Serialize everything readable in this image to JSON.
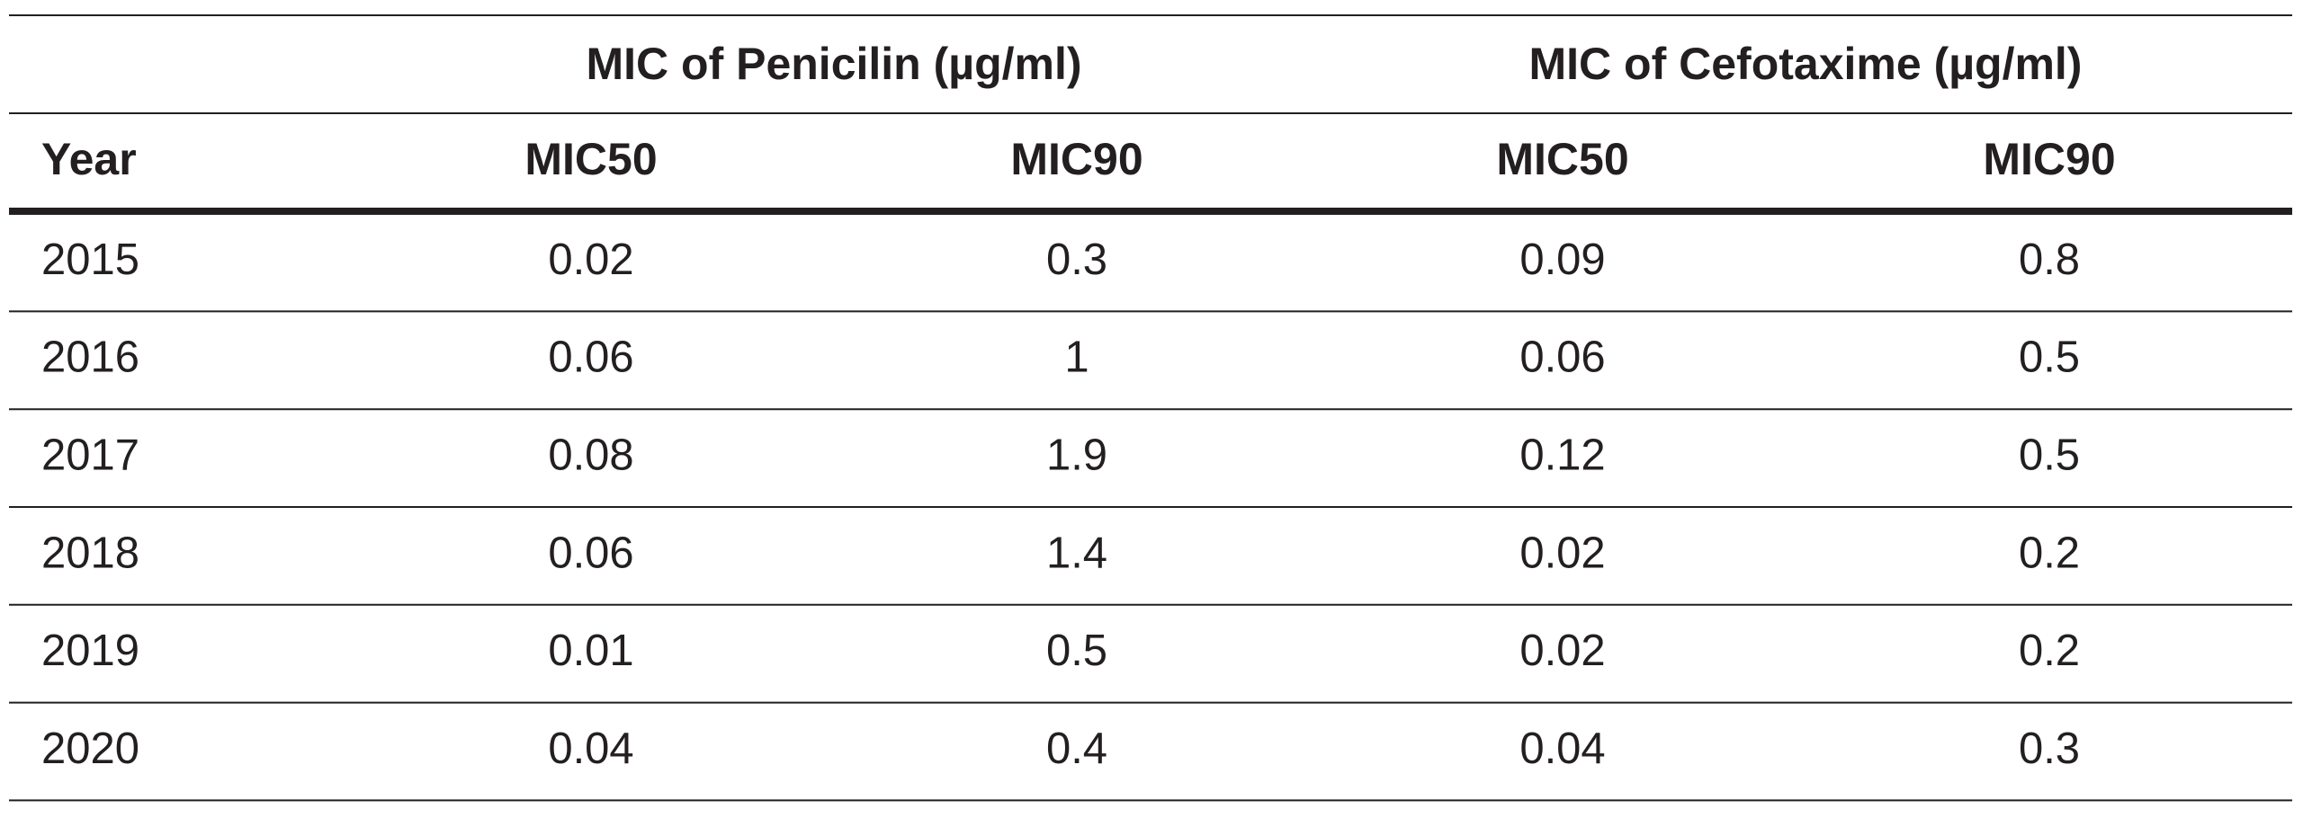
{
  "table": {
    "group_headers": [
      "MIC of Penicilin (µg/ml)",
      "MIC of Cefotaxime (µg/ml)"
    ],
    "columns": [
      "Year",
      "MIC50",
      "MIC90",
      "MIC50",
      "MIC90"
    ],
    "rows": [
      [
        "2015",
        "0.02",
        "0.3",
        "0.09",
        "0.8"
      ],
      [
        "2016",
        "0.06",
        "1",
        "0.06",
        "0.5"
      ],
      [
        "2017",
        "0.08",
        "1.9",
        "0.12",
        "0.5"
      ],
      [
        "2018",
        "0.06",
        "1.4",
        "0.02",
        "0.2"
      ],
      [
        "2019",
        "0.01",
        "0.5",
        "0.02",
        "0.2"
      ],
      [
        "2020",
        "0.04",
        "0.4",
        "0.04",
        "0.3"
      ]
    ]
  }
}
